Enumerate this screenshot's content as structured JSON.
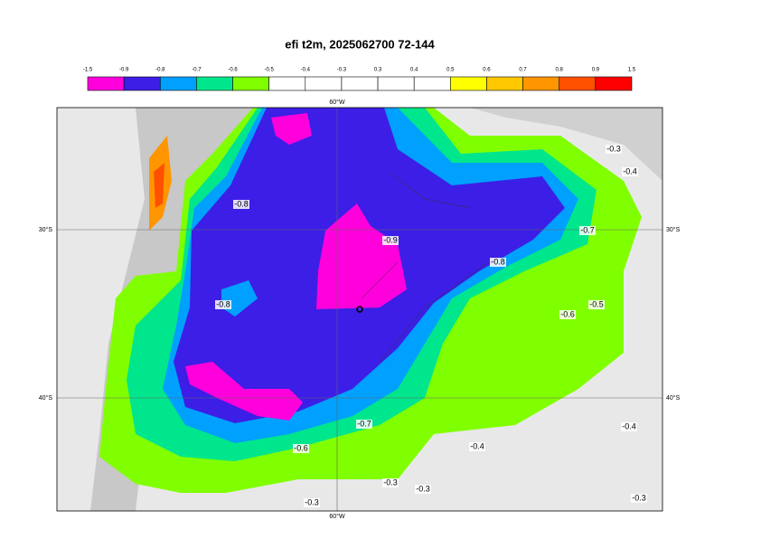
{
  "title": "efi t2m, 2025062700 72-144",
  "colorbar": {
    "labels": [
      "-1.5",
      "-0.9",
      "-0.8",
      "-0.7",
      "-0.6",
      "-0.5",
      "-0.4",
      "-0.3",
      "0.3",
      "0.4",
      "0.5",
      "0.6",
      "0.7",
      "0.8",
      "0.9",
      "1.5"
    ],
    "colors": [
      "#ff00dc",
      "#3c1ee6",
      "#00a0ff",
      "#00e68c",
      "#80ff00",
      "#ffffff",
      "#ffffff",
      "#ffffff",
      "#ffffff",
      "#ffffff",
      "#ffff00",
      "#ffc800",
      "#ff9600",
      "#ff5000",
      "#ff0000"
    ]
  },
  "map": {
    "top_label": "60°W",
    "bottom_label": "60°W",
    "left_labels": [
      "30°S",
      "40°S"
    ],
    "right_labels": [
      "30°S",
      "40°S"
    ],
    "contour_labels": [
      "-0.9",
      "-0.8",
      "-0.8",
      "-0.8",
      "-0.7",
      "-0.7",
      "-0.6",
      "-0.6",
      "-0.5",
      "-0.4",
      "-0.4",
      "-0.4",
      "-0.3",
      "-0.3",
      "-0.3",
      "-0.3",
      "-0.3"
    ]
  }
}
